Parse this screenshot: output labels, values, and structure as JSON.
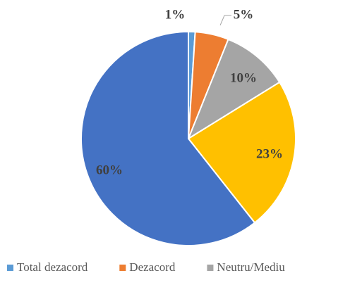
{
  "chart_data": {
    "type": "pie",
    "categories": [
      "Total dezacord",
      "Dezacord",
      "Neutru/Mediu",
      null,
      null
    ],
    "values": [
      1,
      5,
      10,
      23,
      60
    ],
    "value_labels": [
      "1%",
      "5%",
      "10%",
      "23%",
      "60%"
    ],
    "colors": [
      "#5b9bd5",
      "#ed7d31",
      "#a5a5a5",
      "#ffc000",
      "#4472c4"
    ],
    "legend": "bottom"
  }
}
